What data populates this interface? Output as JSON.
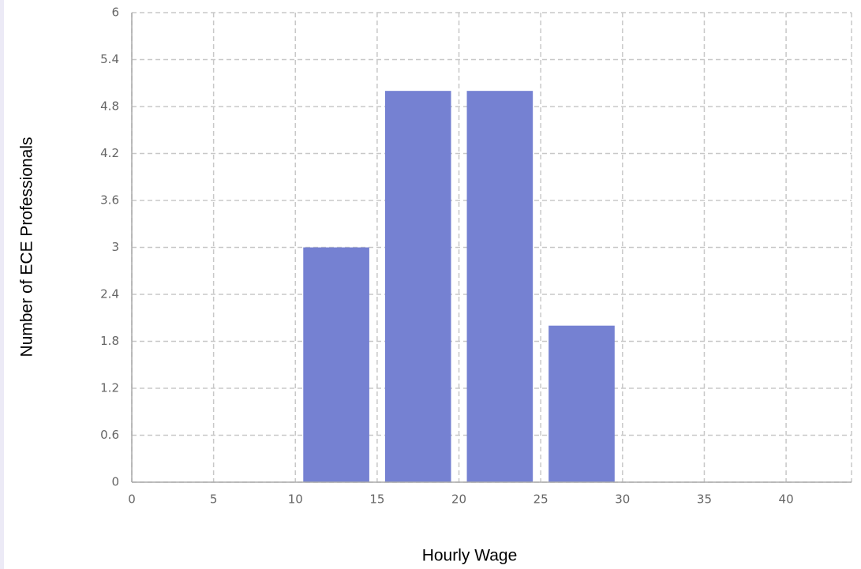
{
  "chart_data": {
    "type": "histogram",
    "x_label": "Hourly Wage",
    "y_label": "Number of ECE Professionals",
    "bins": [
      10,
      15,
      20,
      25,
      30
    ],
    "values": [
      3,
      5,
      5,
      2
    ],
    "color": "#7581d2",
    "xlim": [
      0,
      44
    ],
    "xticks": [
      0,
      5,
      10,
      15,
      20,
      25,
      30,
      35,
      40
    ],
    "ylim": [
      0,
      6
    ],
    "yticks": [
      0,
      0.6,
      1.2,
      1.8,
      2.4,
      3,
      3.6,
      4.2,
      4.8,
      5.4,
      6
    ],
    "grid": true
  }
}
